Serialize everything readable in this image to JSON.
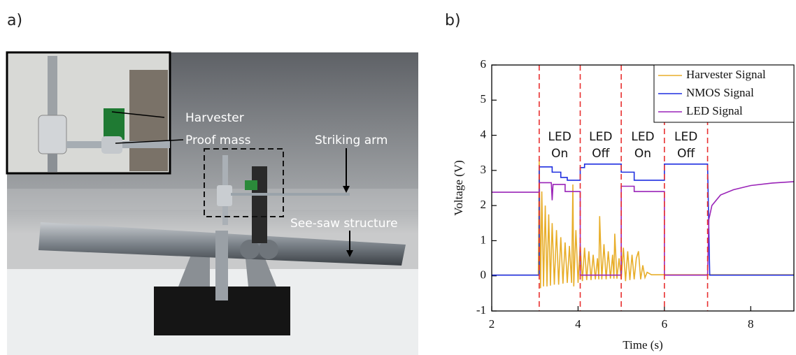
{
  "panels": {
    "a": "a)",
    "b": "b)"
  },
  "photo": {
    "labels": [
      "Harvester",
      "Proof mass",
      "Striking arm",
      "See-saw structure"
    ]
  },
  "chart_data": {
    "type": "line",
    "xlabel": "Time (s)",
    "ylabel": "Voltage (V)",
    "xlim": [
      2,
      9
    ],
    "xticks": [
      2,
      4,
      6,
      8
    ],
    "ylim": [
      -1,
      6
    ],
    "yticks": [
      -1,
      0,
      1,
      2,
      3,
      4,
      5,
      6
    ],
    "legend": "upper right",
    "series": [
      {
        "name": "Harvester Signal",
        "color": "#e8ae2a",
        "x": [
          2,
          3.08,
          3.1,
          3.13,
          3.16,
          3.2,
          3.24,
          3.28,
          3.32,
          3.36,
          3.4,
          3.45,
          3.5,
          3.55,
          3.6,
          3.65,
          3.7,
          3.75,
          3.8,
          3.85,
          3.88,
          3.9,
          3.95,
          4.0,
          4.05,
          4.1,
          4.15,
          4.2,
          4.25,
          4.3,
          4.35,
          4.4,
          4.45,
          4.48,
          4.5,
          4.55,
          4.6,
          4.65,
          4.7,
          4.75,
          4.8,
          4.83,
          4.85,
          4.9,
          4.95,
          5.0,
          5.05,
          5.1,
          5.15,
          5.2,
          5.25,
          5.3,
          5.35,
          5.4,
          5.45,
          5.5,
          5.55,
          5.6,
          5.7,
          9
        ],
        "values": [
          0.02,
          0.02,
          3.3,
          -0.35,
          2.4,
          -0.3,
          2.0,
          -0.3,
          1.75,
          -0.28,
          1.5,
          -0.25,
          1.3,
          -0.25,
          1.1,
          -0.22,
          0.95,
          -0.2,
          0.85,
          -0.2,
          2.6,
          -0.3,
          1.3,
          -0.2,
          0.9,
          -0.15,
          0.8,
          -0.12,
          0.7,
          -0.12,
          0.6,
          -0.1,
          0.5,
          -0.1,
          1.7,
          -0.1,
          0.9,
          -0.1,
          0.7,
          -0.08,
          0.6,
          -0.08,
          1.2,
          -0.08,
          0.5,
          -0.1,
          0.8,
          -0.15,
          0.7,
          -0.12,
          0.6,
          -0.1,
          0.5,
          0.7,
          -0.1,
          0.3,
          -0.05,
          0.1,
          0.03,
          0.03
        ]
      },
      {
        "name": "NMOS Signal",
        "color": "#1f2fe0",
        "x": [
          2,
          3.1,
          3.1,
          3.4,
          3.4,
          3.6,
          3.6,
          3.75,
          3.75,
          4.05,
          4.05,
          4.15,
          4.15,
          5.0,
          5.0,
          5.3,
          5.3,
          6.0,
          6.0,
          7.0,
          7.05,
          9
        ],
        "values": [
          0.02,
          0.02,
          3.1,
          3.1,
          2.95,
          2.95,
          2.8,
          2.8,
          2.72,
          2.72,
          3.08,
          3.08,
          3.18,
          3.18,
          2.95,
          2.95,
          2.72,
          2.72,
          3.18,
          3.18,
          0.02,
          0.02
        ]
      },
      {
        "name": "LED Signal",
        "color": "#9a24b8",
        "x": [
          2,
          3.1,
          3.1,
          3.38,
          3.4,
          3.42,
          3.5,
          3.7,
          3.7,
          4.05,
          4.05,
          5.0,
          5.0,
          5.3,
          5.3,
          6.0,
          6.0,
          7.0,
          7.03,
          7.1,
          7.3,
          7.6,
          8.0,
          8.5,
          9
        ],
        "values": [
          2.38,
          2.38,
          2.65,
          2.65,
          2.15,
          2.6,
          2.6,
          2.6,
          2.4,
          2.4,
          0.02,
          0.02,
          2.55,
          2.55,
          2.4,
          2.4,
          0.02,
          0.02,
          1.6,
          2.0,
          2.3,
          2.45,
          2.57,
          2.64,
          2.68
        ]
      }
    ],
    "vlines": {
      "x": [
        3.1,
        4.05,
        5.0,
        6.0,
        7.0
      ],
      "color": "#e83030"
    },
    "annotations": [
      {
        "lines": [
          "LED",
          "On"
        ],
        "color": "#5aa528"
      },
      {
        "lines": [
          "LED",
          "Off"
        ],
        "color": "#b8b8b8"
      },
      {
        "lines": [
          "LED",
          "On"
        ],
        "color": "#5aa528"
      },
      {
        "lines": [
          "LED",
          "Off"
        ],
        "color": "#b8b8b8"
      }
    ]
  }
}
